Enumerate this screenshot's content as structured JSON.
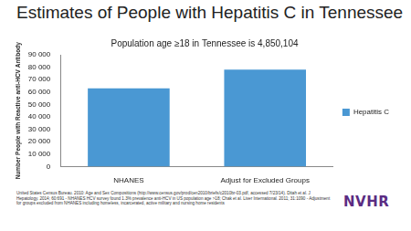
{
  "header": {
    "title": "Estimates of People with Hepatitis C in Tennessee"
  },
  "chart_data": {
    "type": "bar",
    "title": "Population age ≥18 in Tennessee is 4,850,104",
    "y_label": "Number People with Reactive anti-HCV Antibody",
    "categories": [
      "NHANES",
      "Adjust for Excluded Groups"
    ],
    "series": [
      {
        "name": "Hepatitis C",
        "color": "#4a98d3",
        "values": [
          63000,
          78000
        ]
      }
    ],
    "ylim": [
      0,
      90000
    ],
    "yticks": [
      0,
      {
        "value": 10000,
        "label": "10 000"
      },
      {
        "value": 20000,
        "label": "20 000"
      },
      {
        "value": 30000,
        "label": "30 000"
      },
      {
        "value": 40000,
        "label": "40 000"
      },
      {
        "value": 50000,
        "label": "50 000"
      },
      {
        "value": 60000,
        "label": "60 000"
      },
      {
        "value": 70000,
        "label": "70 000"
      },
      {
        "value": 80000,
        "label": "80 000"
      },
      {
        "value": 90000,
        "label": "90 000"
      }
    ],
    "grid": false,
    "legend": "right"
  },
  "footnote": "United States Census Bureau. 2010: Age and Sex Compositions (http://www.census.gov/prod/cen2010/briefs/c2010br-03.pdf, accessed 7/23/14). Ditah et al. J Hepatology. 2014; 60:691 - NHANES HCV survey found 1.3% prevalence anti-HCV in US population age >18; Chak et al. Liver International. 2011; 31:1090 - Adjustment for groups excluded from NHANES including homeless, incarcerated, active military and nursing home residents",
  "logo": "NVHR"
}
